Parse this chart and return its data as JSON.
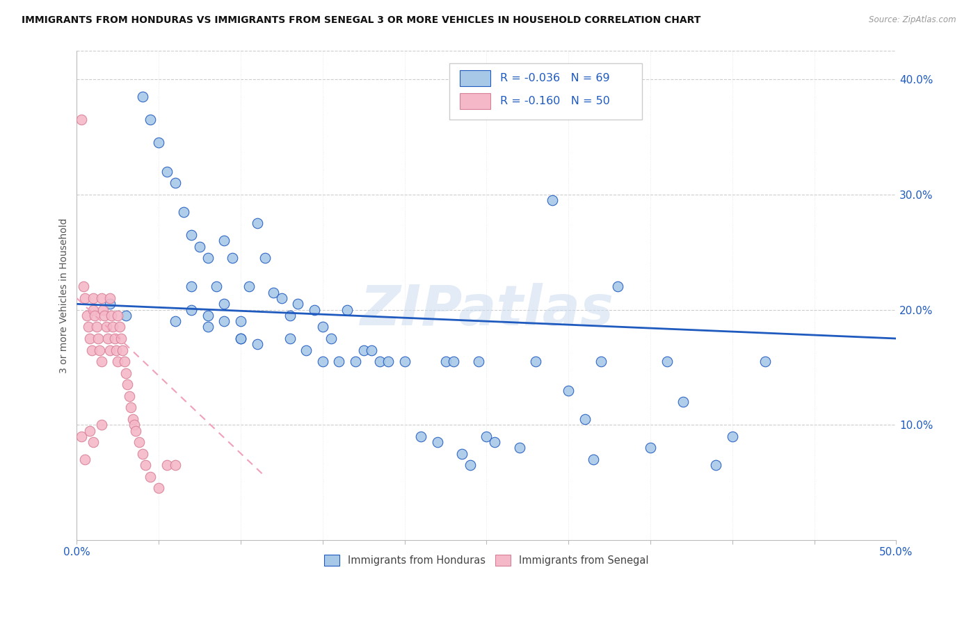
{
  "title": "IMMIGRANTS FROM HONDURAS VS IMMIGRANTS FROM SENEGAL 3 OR MORE VEHICLES IN HOUSEHOLD CORRELATION CHART",
  "source": "Source: ZipAtlas.com",
  "ylabel": "3 or more Vehicles in Household",
  "xlim": [
    0.0,
    0.5
  ],
  "ylim": [
    0.0,
    0.425
  ],
  "r_honduras": -0.036,
  "n_honduras": 69,
  "r_senegal": -0.16,
  "n_senegal": 50,
  "color_honduras": "#a8c8e8",
  "color_senegal": "#f4b8c8",
  "line_honduras": "#1f5abf",
  "line_senegal": "#f0a0b8",
  "legend_text_color": "#1f5abf",
  "watermark": "ZIPatlas",
  "honduras_x": [
    0.02,
    0.04,
    0.045,
    0.05,
    0.055,
    0.06,
    0.065,
    0.07,
    0.07,
    0.075,
    0.08,
    0.08,
    0.085,
    0.09,
    0.09,
    0.095,
    0.1,
    0.1,
    0.105,
    0.11,
    0.115,
    0.12,
    0.125,
    0.13,
    0.135,
    0.14,
    0.145,
    0.15,
    0.155,
    0.16,
    0.165,
    0.17,
    0.175,
    0.18,
    0.185,
    0.19,
    0.2,
    0.21,
    0.22,
    0.225,
    0.23,
    0.235,
    0.24,
    0.245,
    0.25,
    0.255,
    0.27,
    0.28,
    0.29,
    0.3,
    0.31,
    0.315,
    0.32,
    0.33,
    0.35,
    0.36,
    0.37,
    0.39,
    0.4,
    0.42,
    0.03,
    0.06,
    0.07,
    0.08,
    0.09,
    0.1,
    0.11,
    0.13,
    0.15
  ],
  "honduras_y": [
    0.205,
    0.385,
    0.365,
    0.345,
    0.32,
    0.31,
    0.285,
    0.265,
    0.22,
    0.255,
    0.245,
    0.195,
    0.22,
    0.26,
    0.205,
    0.245,
    0.19,
    0.175,
    0.22,
    0.275,
    0.245,
    0.215,
    0.21,
    0.195,
    0.205,
    0.165,
    0.2,
    0.185,
    0.175,
    0.155,
    0.2,
    0.155,
    0.165,
    0.165,
    0.155,
    0.155,
    0.155,
    0.09,
    0.085,
    0.155,
    0.155,
    0.075,
    0.065,
    0.155,
    0.09,
    0.085,
    0.08,
    0.155,
    0.295,
    0.13,
    0.105,
    0.07,
    0.155,
    0.22,
    0.08,
    0.155,
    0.12,
    0.065,
    0.09,
    0.155,
    0.195,
    0.19,
    0.2,
    0.185,
    0.19,
    0.175,
    0.17,
    0.175,
    0.155
  ],
  "senegal_x": [
    0.003,
    0.004,
    0.005,
    0.006,
    0.007,
    0.008,
    0.009,
    0.01,
    0.01,
    0.011,
    0.012,
    0.013,
    0.014,
    0.015,
    0.015,
    0.016,
    0.017,
    0.018,
    0.019,
    0.02,
    0.02,
    0.021,
    0.022,
    0.023,
    0.024,
    0.025,
    0.025,
    0.026,
    0.027,
    0.028,
    0.029,
    0.03,
    0.031,
    0.032,
    0.033,
    0.034,
    0.035,
    0.036,
    0.038,
    0.04,
    0.042,
    0.045,
    0.05,
    0.055,
    0.06,
    0.003,
    0.005,
    0.008,
    0.01,
    0.015
  ],
  "senegal_y": [
    0.365,
    0.22,
    0.21,
    0.195,
    0.185,
    0.175,
    0.165,
    0.21,
    0.2,
    0.195,
    0.185,
    0.175,
    0.165,
    0.155,
    0.21,
    0.2,
    0.195,
    0.185,
    0.175,
    0.165,
    0.21,
    0.195,
    0.185,
    0.175,
    0.165,
    0.155,
    0.195,
    0.185,
    0.175,
    0.165,
    0.155,
    0.145,
    0.135,
    0.125,
    0.115,
    0.105,
    0.1,
    0.095,
    0.085,
    0.075,
    0.065,
    0.055,
    0.045,
    0.065,
    0.065,
    0.09,
    0.07,
    0.095,
    0.085,
    0.1
  ]
}
